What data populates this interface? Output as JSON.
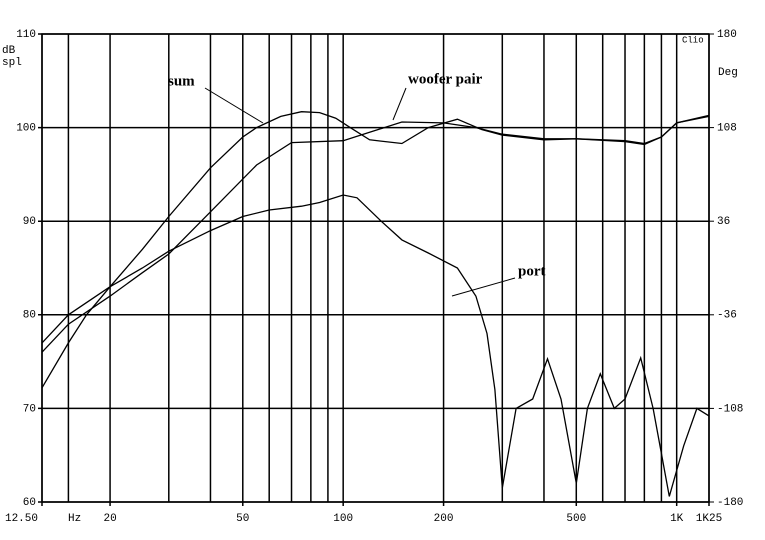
{
  "chart_data": {
    "type": "line",
    "ylabel": [
      "dB",
      "spl"
    ],
    "y2label": "Deg",
    "xlabel": "Hz",
    "corner_label": "Clio",
    "log_x": true,
    "grid": true,
    "xlim": [
      12.5,
      1250
    ],
    "ylim": [
      60,
      110
    ],
    "y2lim": [
      -180,
      180
    ],
    "xticks": [
      {
        "value": 12.5,
        "label": "12.50"
      },
      20,
      50,
      100,
      200,
      500,
      {
        "value": 1000,
        "label": "1K"
      },
      {
        "value": 1250,
        "label": "1K25"
      }
    ],
    "x_grid": [
      15,
      30,
      40,
      60,
      70,
      80,
      90,
      300,
      400,
      600,
      700,
      800,
      900
    ],
    "yticks": [
      60,
      70,
      80,
      90,
      100,
      110
    ],
    "y2ticks": [
      -180,
      -108,
      -36,
      36,
      108,
      180
    ],
    "series": [
      {
        "name": "sum",
        "color": "#000000",
        "x": [
          12.5,
          15,
          17,
          20,
          25,
          30,
          40,
          50,
          55,
          65,
          75,
          85,
          95,
          105,
          120,
          150,
          180,
          220,
          260,
          300,
          400,
          500,
          700,
          800,
          900,
          1000,
          1250
        ],
        "values": [
          72.2,
          77,
          80,
          83,
          87,
          90.5,
          95.7,
          99,
          100,
          101.2,
          101.7,
          101.6,
          101,
          100,
          98.7,
          98.3,
          100,
          100.9,
          99.8,
          99.2,
          98.7,
          98.8,
          98.5,
          98.2,
          99,
          100.5,
          101.3
        ]
      },
      {
        "name": "woofer pair",
        "color": "#000000",
        "x": [
          12.5,
          15,
          20,
          25,
          30,
          40,
          55,
          70,
          100,
          120,
          150,
          200,
          250,
          300,
          400,
          500,
          700,
          800,
          900,
          1000,
          1250
        ],
        "values": [
          76,
          79,
          82,
          84.5,
          86.5,
          91,
          96,
          98.4,
          98.6,
          99.5,
          100.6,
          100.5,
          100,
          99.3,
          98.8,
          98.8,
          98.6,
          98.3,
          99,
          100.5,
          101.2
        ]
      },
      {
        "name": "port",
        "color": "#000000",
        "x": [
          12.5,
          15,
          20,
          25,
          30,
          40,
          50,
          60,
          75,
          85,
          100,
          110,
          130,
          150,
          180,
          220,
          250,
          270,
          285,
          300,
          330,
          370,
          410,
          450,
          500,
          540,
          590,
          650,
          700,
          780,
          850,
          950,
          1050,
          1150,
          1250
        ],
        "values": [
          77,
          80,
          83,
          85,
          86.8,
          89,
          90.5,
          91.2,
          91.6,
          92,
          92.8,
          92.5,
          90,
          88,
          86.6,
          85,
          82,
          78,
          72,
          61.5,
          70,
          71,
          75.3,
          71,
          62,
          70,
          73.7,
          70,
          71,
          75.4,
          70,
          60.6,
          66,
          70,
          69.2
        ]
      }
    ],
    "annotations": [
      {
        "text": "sum"
      },
      {
        "text": "woofer pair"
      },
      {
        "text": "port"
      }
    ]
  }
}
